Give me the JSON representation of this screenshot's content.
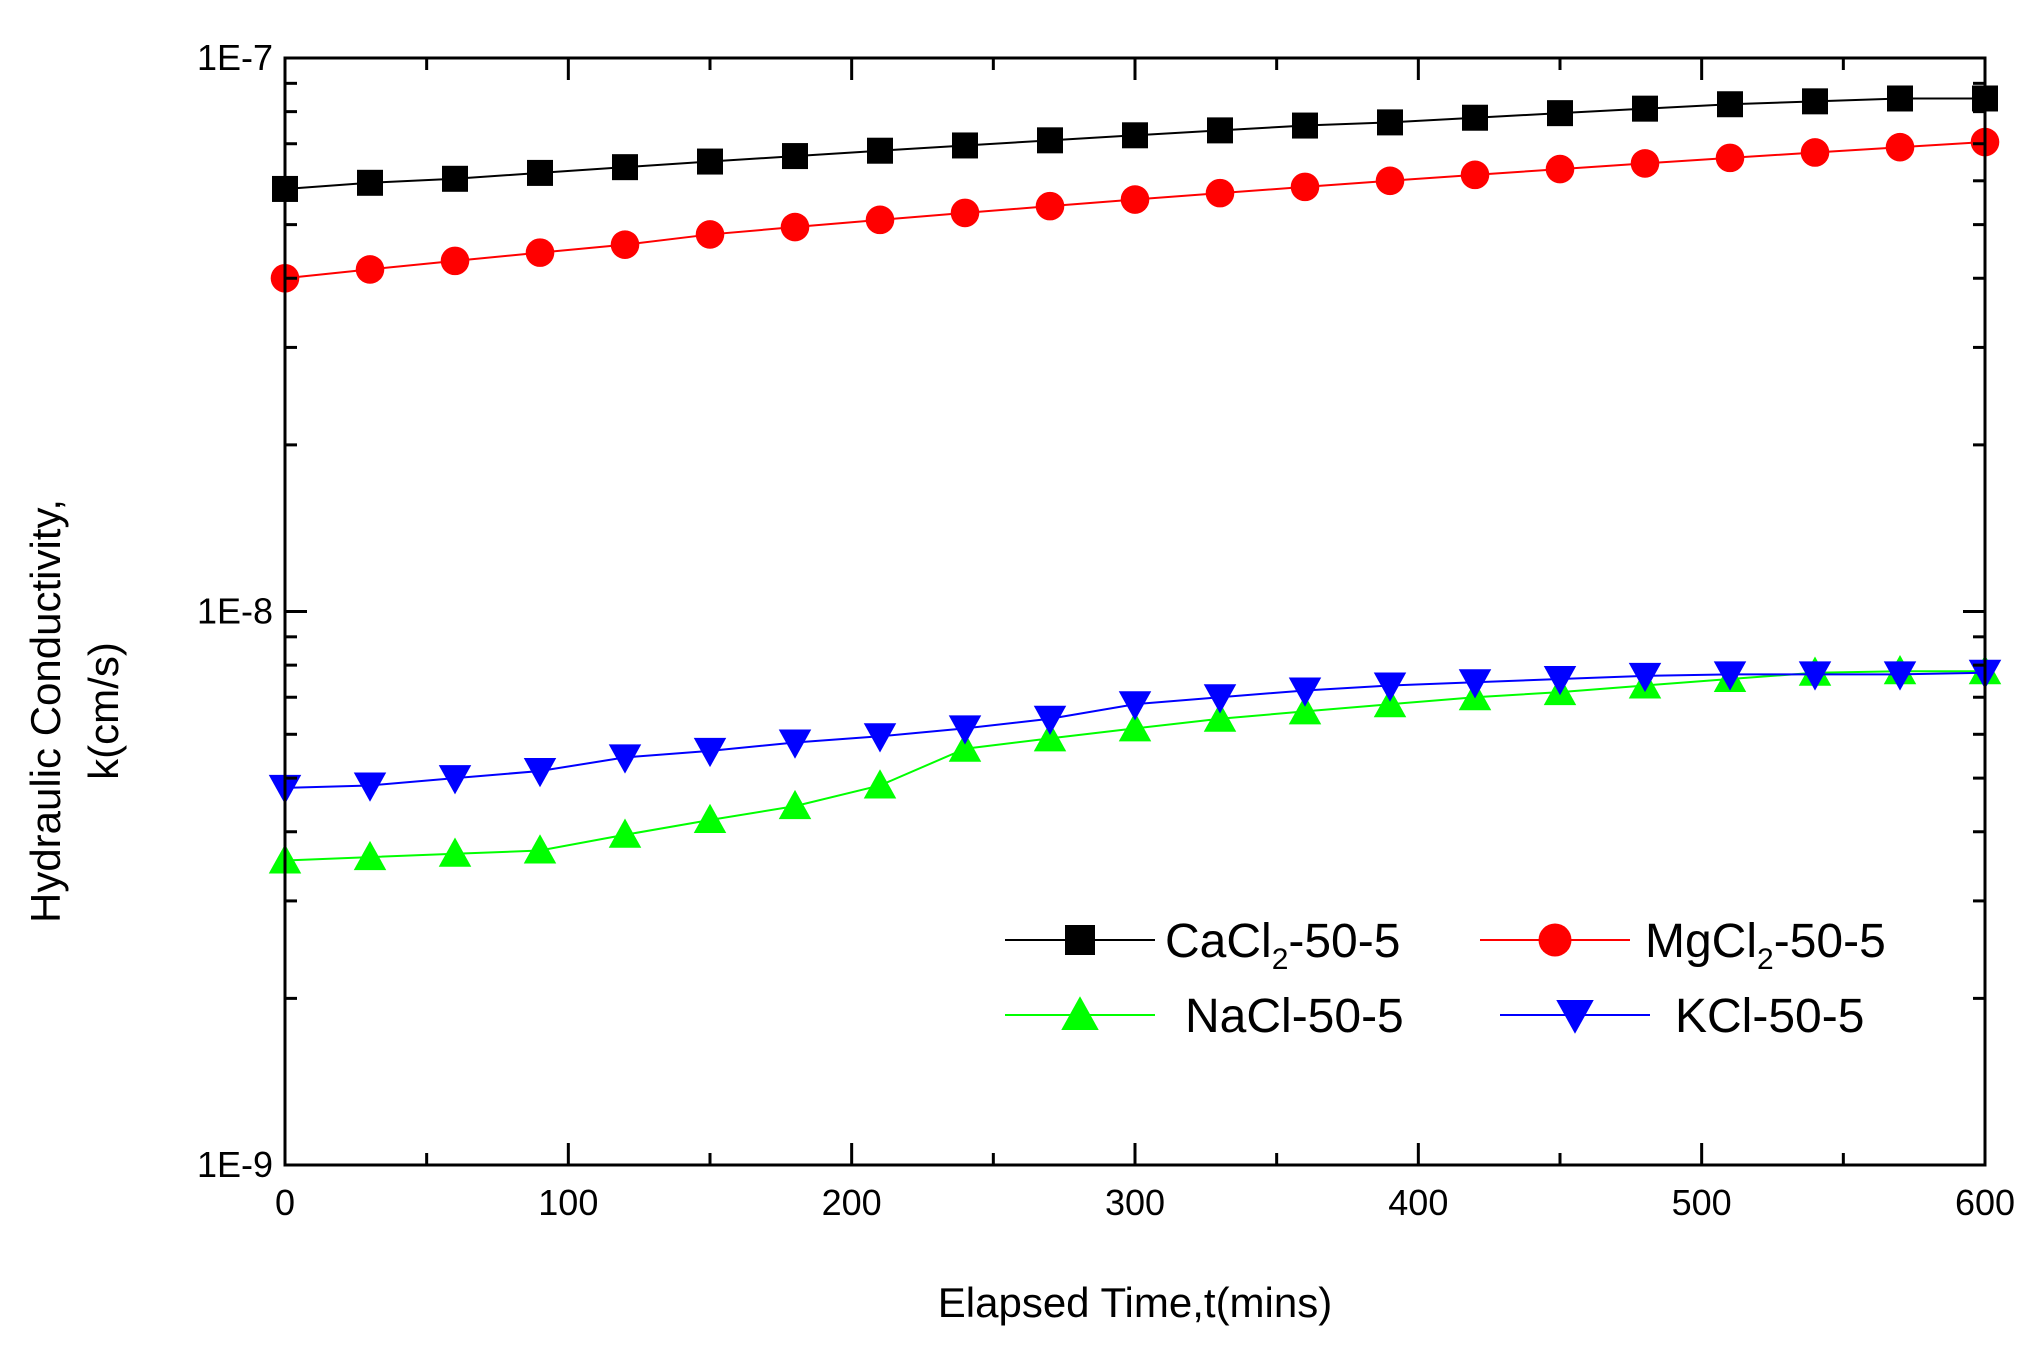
{
  "chart_data": {
    "type": "line",
    "xlabel": "Elapsed Time,t(mins)",
    "ylabel_line1": "Hydraulic Conductivity,",
    "ylabel_line2": "k(cm/s)",
    "xlim": [
      0,
      600
    ],
    "ylim": [
      1e-09,
      1e-07
    ],
    "yscale": "log",
    "x_ticks": [
      0,
      100,
      200,
      300,
      400,
      500,
      600
    ],
    "x_tick_labels": [
      "0",
      "100",
      "200",
      "300",
      "400",
      "500",
      "600"
    ],
    "y_ticks": [
      1e-09,
      1e-08,
      1e-07
    ],
    "y_tick_labels": [
      "1E-9",
      "1E-8",
      "1E-7"
    ],
    "grid": false,
    "legend_position": "bottom-right",
    "x": [
      0,
      30,
      60,
      90,
      120,
      150,
      180,
      210,
      240,
      270,
      300,
      330,
      360,
      390,
      420,
      450,
      480,
      510,
      540,
      570,
      600
    ],
    "series": [
      {
        "name": "CaCl2-50-5",
        "legend_base": "CaCl",
        "legend_sub": "2",
        "legend_suffix": "-50-5",
        "color": "#000000",
        "marker": "square",
        "values": [
          5.8e-08,
          5.95e-08,
          6.05e-08,
          6.2e-08,
          6.35e-08,
          6.5e-08,
          6.65e-08,
          6.8e-08,
          6.95e-08,
          7.1e-08,
          7.25e-08,
          7.4e-08,
          7.55e-08,
          7.65e-08,
          7.8e-08,
          7.95e-08,
          8.1e-08,
          8.25e-08,
          8.35e-08,
          8.45e-08,
          8.45e-08
        ]
      },
      {
        "name": "MgCl2-50-5",
        "legend_base": "MgCl",
        "legend_sub": "2",
        "legend_suffix": "-50-5",
        "color": "#ff0000",
        "marker": "circle",
        "values": [
          4e-08,
          4.15e-08,
          4.3e-08,
          4.45e-08,
          4.6e-08,
          4.8e-08,
          4.95e-08,
          5.1e-08,
          5.25e-08,
          5.4e-08,
          5.55e-08,
          5.7e-08,
          5.85e-08,
          6e-08,
          6.15e-08,
          6.3e-08,
          6.45e-08,
          6.6e-08,
          6.75e-08,
          6.9e-08,
          7.05e-08
        ]
      },
      {
        "name": "NaCl-50-5",
        "legend_base": "NaCl-50-5",
        "legend_sub": "",
        "legend_suffix": "",
        "color": "#00ff00",
        "marker": "triangle-up",
        "values": [
          3.55e-09,
          3.6e-09,
          3.65e-09,
          3.7e-09,
          3.95e-09,
          4.2e-09,
          4.45e-09,
          4.85e-09,
          5.65e-09,
          5.9e-09,
          6.15e-09,
          6.4e-09,
          6.6e-09,
          6.8e-09,
          7e-09,
          7.15e-09,
          7.35e-09,
          7.55e-09,
          7.75e-09,
          7.8e-09,
          7.8e-09
        ]
      },
      {
        "name": "KCl-50-5",
        "legend_base": "KCl-50-5",
        "legend_sub": "",
        "legend_suffix": "",
        "color": "#0000ff",
        "marker": "triangle-down",
        "values": [
          4.8e-09,
          4.85e-09,
          5e-09,
          5.15e-09,
          5.45e-09,
          5.6e-09,
          5.8e-09,
          5.95e-09,
          6.15e-09,
          6.4e-09,
          6.8e-09,
          7e-09,
          7.2e-09,
          7.35e-09,
          7.45e-09,
          7.55e-09,
          7.65e-09,
          7.7e-09,
          7.7e-09,
          7.7e-09,
          7.75e-09
        ]
      }
    ]
  }
}
